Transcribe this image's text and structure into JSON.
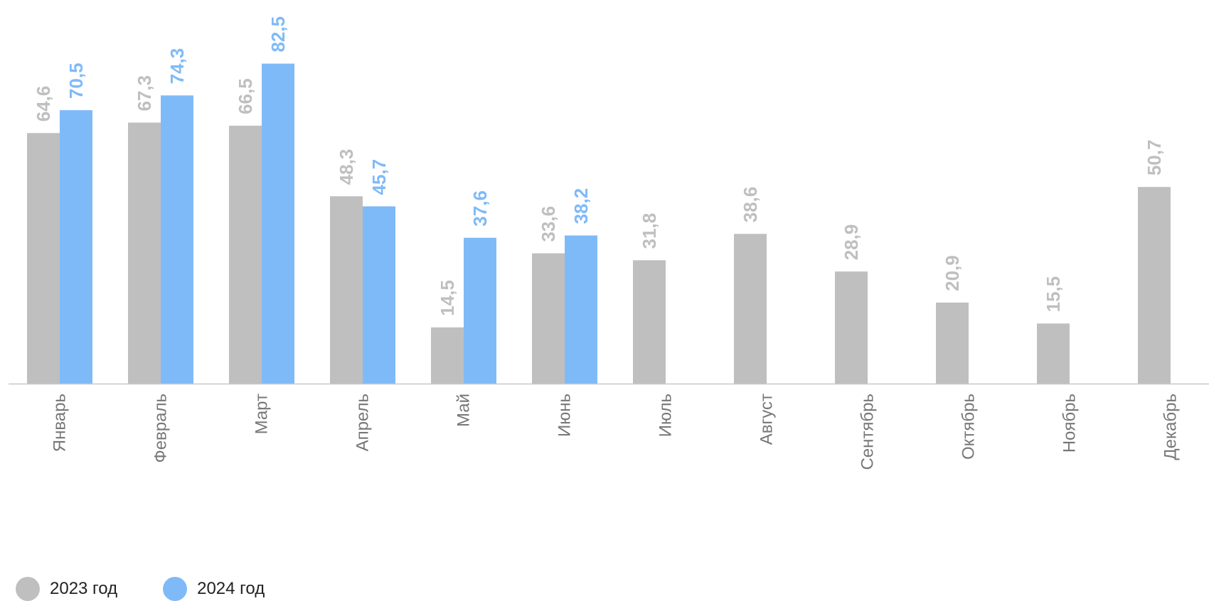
{
  "chart_data": {
    "type": "bar",
    "categories": [
      "Январь",
      "Февраль",
      "Март",
      "Апрель",
      "Май",
      "Июнь",
      "Июль",
      "Август",
      "Сентябрь",
      "Октябрь",
      "Ноябрь",
      "Декабрь"
    ],
    "series": [
      {
        "name": "2023 год",
        "color": "#bfbfbf",
        "values": [
          64.6,
          67.3,
          66.5,
          48.3,
          14.5,
          33.6,
          31.8,
          38.6,
          28.9,
          20.9,
          15.5,
          50.7
        ],
        "labels": [
          "64,6",
          "67,3",
          "66,5",
          "48,3",
          "14,5",
          "33,6",
          "31,8",
          "38,6",
          "28,9",
          "20,9",
          "15,5",
          "50,7"
        ]
      },
      {
        "name": "2024 год",
        "color": "#7fbaf8",
        "values": [
          70.5,
          74.3,
          82.5,
          45.7,
          37.6,
          38.2,
          null,
          null,
          null,
          null,
          null,
          null
        ],
        "labels": [
          "70,5",
          "74,3",
          "82,5",
          "45,7",
          "37,6",
          "38,2",
          null,
          null,
          null,
          null,
          null,
          null
        ]
      }
    ],
    "xlabel": "",
    "ylabel": "",
    "ylim": [
      0,
      82.5
    ],
    "grid": false,
    "legend": "bottom-left"
  }
}
